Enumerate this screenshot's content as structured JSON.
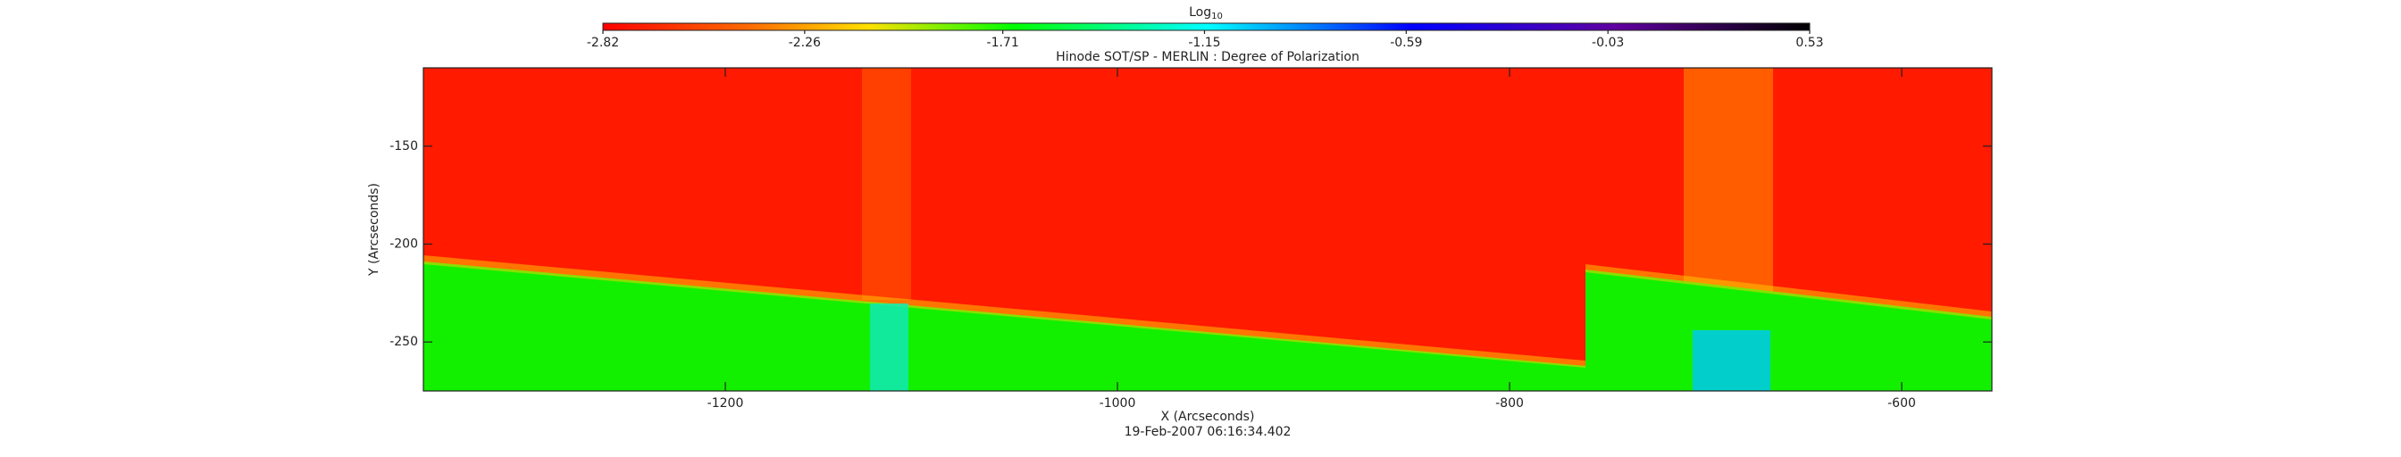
{
  "chart_data": {
    "type": "image",
    "title": "Hinode SOT/SP - MERLIN : Degree of Polarization",
    "xlabel": "X (Arcseconds)",
    "ylabel": "Y (Arcseconds)",
    "footer": "19-Feb-2007 06:16:34.402",
    "xlim": [
      -1354,
      -554
    ],
    "xticks": [
      -1200,
      -1000,
      -800,
      -600
    ],
    "ylim": [
      -275,
      -110
    ],
    "yticks": [
      -150,
      -200,
      -250
    ],
    "colorbar": {
      "label": {
        "base": "Log",
        "subscript": "10"
      },
      "lim": [
        -2.82,
        0.53
      ],
      "ticks": [
        -2.82,
        -2.26,
        -1.71,
        -1.15,
        -0.59,
        -0.03,
        0.53
      ]
    }
  }
}
